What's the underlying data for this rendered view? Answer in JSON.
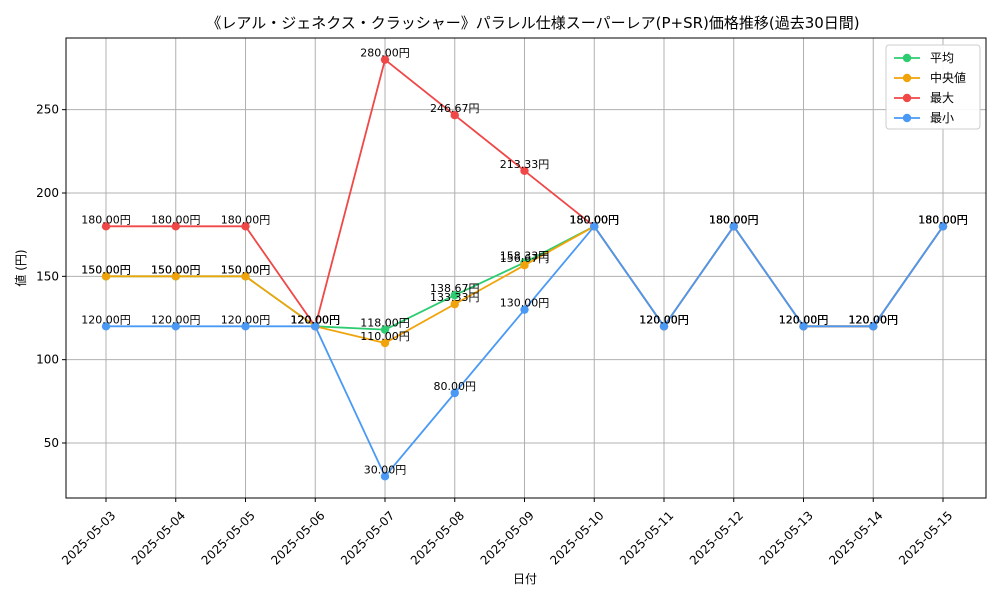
{
  "chart_data": {
    "type": "line",
    "title": "《レアル・ジェネクス・クラッシャー》パラレル仕様スーパーレア(P+SR)価格推移(過去30日間)",
    "xlabel": "日付",
    "ylabel": "値 (円)",
    "categories": [
      "2025-05-03",
      "2025-05-04",
      "2025-05-05",
      "2025-05-06",
      "2025-05-07",
      "2025-05-08",
      "2025-05-09",
      "2025-05-10",
      "2025-05-11",
      "2025-05-12",
      "2025-05-13",
      "2025-05-14",
      "2025-05-15"
    ],
    "ylim": [
      17,
      293
    ],
    "yticks": [
      50,
      100,
      150,
      200,
      250
    ],
    "grid": true,
    "legend_position": "top-right",
    "series": [
      {
        "name": "平均",
        "color": "#2ecc71",
        "values": [
          150,
          150,
          150,
          120,
          118,
          138.67,
          158.33,
          180,
          120,
          180,
          120,
          120,
          180
        ],
        "labels": [
          "150.00円",
          "150.00円",
          "150.00円",
          "120.00円",
          "118.00円",
          "138.67円",
          "158.33円",
          "180.00円",
          "120.00円",
          "180.00円",
          "120.00円",
          "120.00円",
          "180.00円"
        ]
      },
      {
        "name": "中央値",
        "color": "#f0a30a",
        "values": [
          150,
          150,
          150,
          120,
          110,
          133.33,
          156.67,
          180,
          120,
          180,
          120,
          120,
          180
        ],
        "labels": [
          "150.00円",
          "150.00円",
          "150.00円",
          "120.00円",
          "110.00円",
          "133.33円",
          "156.67円",
          "180.00円",
          "120.00円",
          "180.00円",
          "120.00円",
          "120.00円",
          "180.00円"
        ]
      },
      {
        "name": "最大",
        "color": "#f04747",
        "values": [
          180,
          180,
          180,
          120,
          280,
          246.67,
          213.33,
          180,
          120,
          180,
          120,
          120,
          180
        ],
        "labels": [
          "180.00円",
          "180.00円",
          "180.00円",
          "120.00円",
          "280.00円",
          "246.67円",
          "213.33円",
          "180.00円",
          "120.00円",
          "180.00円",
          "120.00円",
          "120.00円",
          "180.00円"
        ]
      },
      {
        "name": "最小",
        "color": "#4a9af5",
        "values": [
          120,
          120,
          120,
          120,
          30,
          80,
          130,
          180,
          120,
          180,
          120,
          120,
          180
        ],
        "labels": [
          "120.00円",
          "120.00円",
          "120.00円",
          "120.00円",
          "30.00円",
          "80.00円",
          "130.00円",
          "180.00円",
          "120.00円",
          "180.00円",
          "120.00円",
          "120.00円",
          "180.00円"
        ]
      }
    ]
  }
}
